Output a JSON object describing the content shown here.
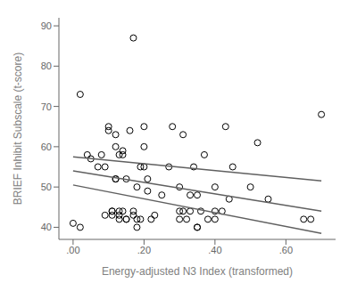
{
  "chart_data": {
    "type": "scatter",
    "xlabel": "Energy-adjusted N3 Index (transformed)",
    "ylabel": "BRIEF Inhibit Subscale (t-score)",
    "xlim": [
      -0.04,
      0.74
    ],
    "ylim": [
      37,
      92
    ],
    "xticks": [
      {
        "value": 0.0,
        "label": ".00"
      },
      {
        "value": 0.2,
        "label": ".20"
      },
      {
        "value": 0.4,
        "label": ".40"
      },
      {
        "value": 0.6,
        "label": ".60"
      }
    ],
    "yticks": [
      40,
      50,
      60,
      70,
      80,
      90
    ],
    "grid": false,
    "series": [
      {
        "type": "scatter",
        "marker": "open_circle",
        "color": "#000000",
        "x": [
          0.02,
          0.0,
          0.04,
          0.05,
          0.07,
          0.08,
          0.09,
          0.09,
          0.1,
          0.1,
          0.11,
          0.11,
          0.11,
          0.12,
          0.12,
          0.12,
          0.12,
          0.13,
          0.13,
          0.13,
          0.13,
          0.14,
          0.14,
          0.14,
          0.15,
          0.15,
          0.15,
          0.16,
          0.17,
          0.17,
          0.18,
          0.18,
          0.18,
          0.19,
          0.19,
          0.2,
          0.2,
          0.2,
          0.21,
          0.21,
          0.22,
          0.23,
          0.25,
          0.27,
          0.28,
          0.3,
          0.3,
          0.3,
          0.31,
          0.31,
          0.32,
          0.33,
          0.33,
          0.34,
          0.35,
          0.35,
          0.35,
          0.36,
          0.37,
          0.38,
          0.4,
          0.4,
          0.4,
          0.42,
          0.43,
          0.44,
          0.45,
          0.5,
          0.52,
          0.55,
          0.65,
          0.67,
          0.7,
          0.17,
          0.02
        ],
        "values": [
          40,
          41,
          58,
          57,
          55,
          58,
          43,
          55,
          65,
          64,
          43,
          44,
          44,
          52,
          52,
          60,
          63,
          43,
          44,
          42,
          58,
          44,
          58,
          59,
          42,
          42,
          52,
          64,
          43,
          44,
          42,
          40,
          50,
          42,
          55,
          65,
          60,
          55,
          52,
          49,
          42,
          43,
          48,
          55,
          65,
          42,
          44,
          50,
          44,
          63,
          42,
          44,
          48,
          55,
          40,
          40,
          48,
          44,
          58,
          42,
          42,
          44,
          50,
          44,
          65,
          47,
          55,
          50,
          61,
          47,
          42,
          42,
          68,
          87,
          73
        ]
      },
      {
        "type": "line",
        "color": "#606060",
        "x": [
          0.0,
          0.7
        ],
        "values": [
          57.5,
          51.5
        ]
      },
      {
        "type": "line",
        "color": "#606060",
        "x": [
          0.0,
          0.7
        ],
        "values": [
          54.0,
          44.0
        ]
      },
      {
        "type": "line",
        "color": "#606060",
        "x": [
          0.0,
          0.7
        ],
        "values": [
          50.5,
          38.5
        ]
      }
    ]
  }
}
